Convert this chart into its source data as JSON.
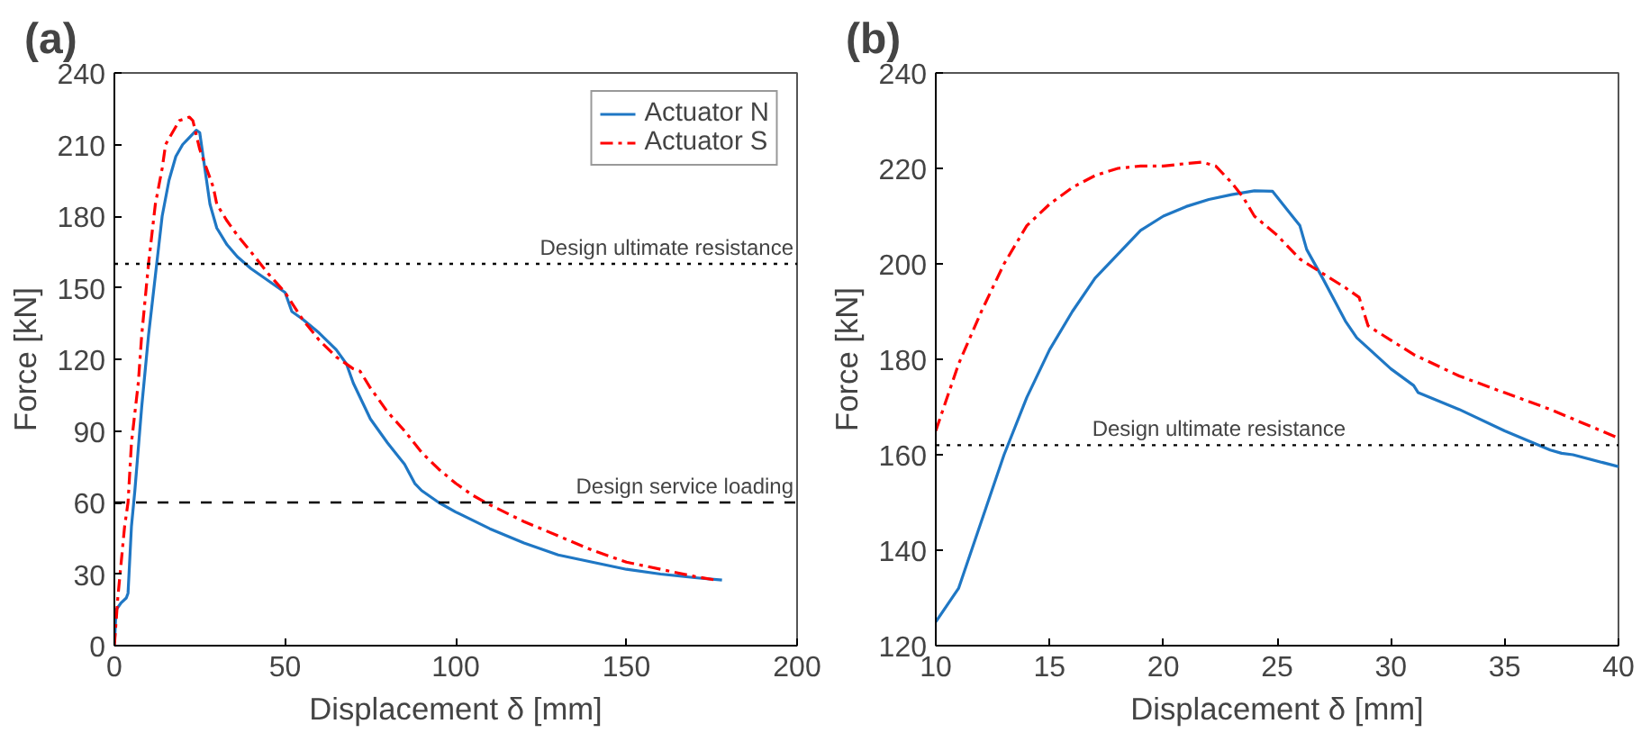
{
  "chart_data": [
    {
      "type": "line",
      "title": "(a)",
      "xlabel": "Displacement δ [mm]",
      "ylabel": "Force [kN]",
      "xlim": [
        0,
        200
      ],
      "ylim": [
        0,
        240
      ],
      "xticks": [
        0,
        50,
        100,
        150,
        200
      ],
      "yticks": [
        0,
        30,
        60,
        90,
        120,
        150,
        180,
        210,
        240
      ],
      "grid": false,
      "legend": "top right",
      "ref_lines": [
        {
          "axis": "y",
          "value": 160,
          "label": "Design ultimate resistance",
          "color": "#000000",
          "line_style": "dotted"
        },
        {
          "axis": "y",
          "value": 60,
          "label": "Design service loading",
          "color": "#000000",
          "line_style": "dashed"
        }
      ],
      "series": [
        {
          "name": "Actuator N",
          "color": "#1f77c4",
          "line_style": "solid",
          "x": [
            0,
            0.5,
            2,
            3.5,
            4,
            5,
            6,
            8,
            10,
            12,
            14,
            16,
            18,
            20,
            22,
            24,
            25,
            26,
            27,
            28,
            30,
            33,
            36,
            40,
            45,
            50,
            52,
            55,
            60,
            65,
            68,
            70,
            75,
            80,
            85,
            88,
            90,
            95,
            100,
            110,
            120,
            130,
            140,
            150,
            160,
            170,
            178
          ],
          "values": [
            0,
            15,
            18,
            20,
            22,
            50,
            65,
            100,
            130,
            155,
            180,
            195,
            205,
            210,
            213,
            216,
            215,
            205,
            195,
            185,
            175,
            168,
            163,
            158,
            153,
            148,
            140,
            137,
            131,
            124,
            118,
            110,
            95,
            85,
            76,
            68,
            65,
            60,
            56,
            49,
            43,
            38,
            35,
            32,
            30,
            28.5,
            27.5
          ]
        },
        {
          "name": "Actuator S",
          "color": "#ff0000",
          "line_style": "dashdot",
          "x": [
            0,
            1,
            2,
            3,
            4,
            5,
            7,
            8,
            10,
            12,
            14,
            15,
            17,
            19,
            21,
            22,
            23,
            24,
            25,
            27,
            29,
            30,
            33,
            36,
            40,
            45,
            50,
            55,
            60,
            65,
            70,
            72,
            75,
            80,
            85,
            90,
            95,
            100,
            105,
            110,
            120,
            130,
            140,
            150,
            160,
            170,
            176
          ],
          "values": [
            0,
            20,
            35,
            50,
            60,
            85,
            110,
            130,
            160,
            185,
            200,
            210,
            215,
            220,
            221,
            221.5,
            220,
            214,
            208,
            200,
            192,
            185,
            178,
            172,
            165,
            156,
            148,
            137,
            128,
            121,
            116,
            115,
            108,
            98,
            90,
            81,
            74,
            68,
            63,
            59,
            52,
            46,
            40,
            35,
            32,
            29,
            27.5
          ]
        }
      ]
    },
    {
      "type": "line",
      "title": "(b)",
      "xlabel": "Displacement δ [mm]",
      "ylabel": "Force [kN]",
      "xlim": [
        10,
        40
      ],
      "ylim": [
        120,
        240
      ],
      "xticks": [
        10,
        15,
        20,
        25,
        30,
        35,
        40
      ],
      "yticks": [
        120,
        140,
        160,
        180,
        200,
        220,
        240
      ],
      "grid": false,
      "ref_lines": [
        {
          "axis": "y",
          "value": 162,
          "label": "Design ultimate resistance",
          "color": "#000000",
          "line_style": "dotted"
        }
      ],
      "series": [
        {
          "color": "#1f77c4",
          "line_style": "solid",
          "x": [
            10,
            11,
            12,
            13,
            14,
            15,
            16,
            17,
            18,
            19,
            20,
            21,
            22,
            23,
            24,
            24.8,
            25.5,
            26,
            26.3,
            27,
            28,
            28.5,
            30,
            31,
            31.2,
            33,
            35,
            37,
            37.5,
            38,
            40
          ],
          "values": [
            125,
            132,
            146,
            160,
            172,
            182,
            190,
            197,
            202,
            207,
            210,
            212,
            213.5,
            214.5,
            215.3,
            215.2,
            211,
            208,
            203,
            197,
            188,
            184.5,
            178,
            174.5,
            173,
            169.5,
            165,
            161,
            160.3,
            160,
            157.5
          ]
        },
        {
          "color": "#ff0000",
          "line_style": "dashdot",
          "x": [
            10,
            11,
            12,
            13,
            14,
            15,
            16,
            17,
            18,
            19,
            20,
            21,
            21.7,
            22.3,
            23,
            23.5,
            24,
            25,
            26,
            27,
            28,
            28.6,
            29,
            30,
            31,
            33,
            35,
            37,
            39,
            40
          ],
          "values": [
            165,
            179,
            190,
            200,
            208,
            212.5,
            216,
            218.5,
            220,
            220.5,
            220.5,
            221,
            221.3,
            220.5,
            217,
            214,
            210,
            206,
            201,
            198,
            195,
            193,
            187,
            184,
            181,
            176.5,
            173,
            169.5,
            165.5,
            163.5
          ]
        }
      ]
    }
  ]
}
